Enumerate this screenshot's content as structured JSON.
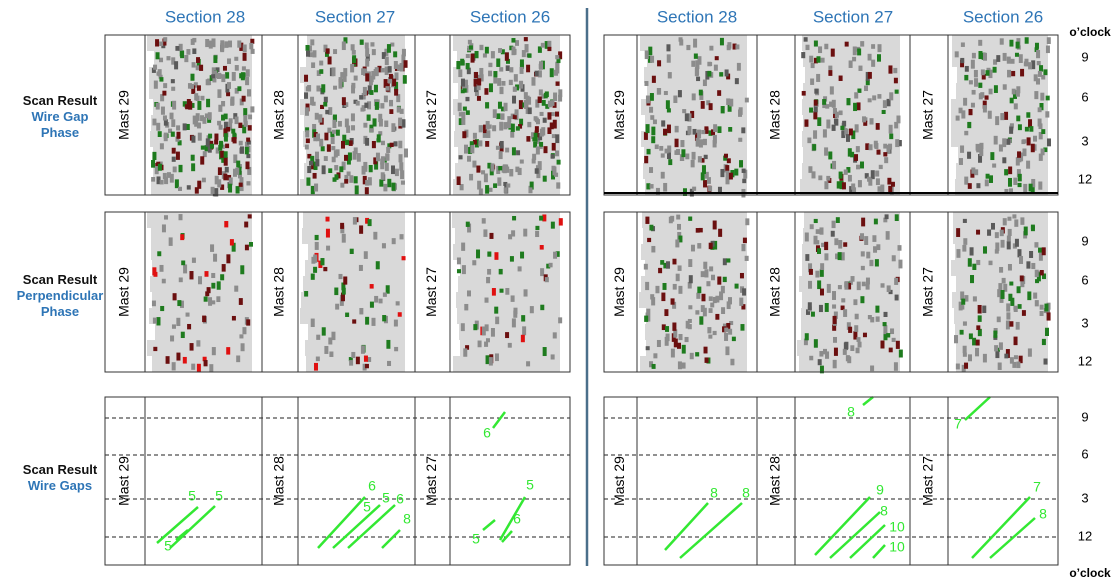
{
  "sections": [
    "Section 28",
    "Section 27",
    "Section 26"
  ],
  "oclock_label": "o’clock",
  "rows": [
    {
      "title": "Scan Result",
      "subtitle": "Wire Gap Phase"
    },
    {
      "title": "Scan Result",
      "subtitle": "Perpendicular Phase"
    },
    {
      "title": "Scan Result",
      "subtitle": "Wire Gaps"
    }
  ],
  "masts": [
    "Mast 29",
    "Mast 28",
    "Mast 27"
  ],
  "oclock_ticks": [
    "9",
    "6",
    "3",
    "12"
  ],
  "gap_labels": {
    "left": [
      [
        "5",
        "5",
        "5"
      ],
      [
        "6",
        "5",
        "5",
        "6",
        "8"
      ],
      [
        "6",
        "5",
        "6",
        "5"
      ]
    ],
    "right": [
      [
        "8",
        "8"
      ],
      [
        "8",
        "9",
        "8",
        "10",
        "10"
      ],
      [
        "7",
        "7",
        "8"
      ]
    ]
  }
}
